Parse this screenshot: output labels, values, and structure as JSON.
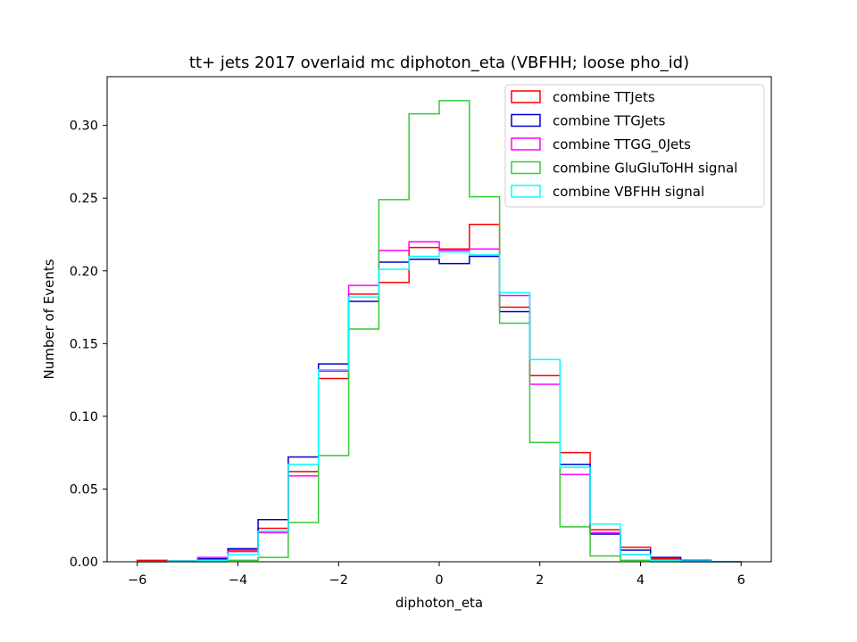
{
  "chart_data": {
    "type": "histogram",
    "title": "tt+ jets 2017 overlaid mc diphoton_eta (VBFHH; loose pho_id)",
    "xlabel": "diphoton_eta",
    "ylabel": "Number of Events",
    "xlim": [
      -6.6,
      6.6
    ],
    "ylim": [
      0,
      0.3335
    ],
    "x_ticks": [
      -6,
      -4,
      -2,
      0,
      2,
      4,
      6
    ],
    "x_tick_labels": [
      "−6",
      "−4",
      "−2",
      "0",
      "2",
      "4",
      "6"
    ],
    "y_ticks": [
      0.0,
      0.05,
      0.1,
      0.15,
      0.2,
      0.25,
      0.3
    ],
    "y_tick_labels": [
      "0.00",
      "0.05",
      "0.10",
      "0.15",
      "0.20",
      "0.25",
      "0.30"
    ],
    "grid": false,
    "legend_position": "top-right",
    "bin_edges": [
      -6.0,
      -5.4,
      -4.8,
      -4.2,
      -3.6,
      -3.0,
      -2.4,
      -1.8,
      -1.2,
      -0.6,
      0.0,
      0.6,
      1.2,
      1.8,
      2.4,
      3.0,
      3.6,
      4.2,
      4.8,
      5.4,
      6.0
    ],
    "series": [
      {
        "name": "combine TTJets",
        "color": "#ff0000",
        "values": [
          0.001,
          0.0005,
          0.002,
          0.008,
          0.023,
          0.062,
          0.126,
          0.184,
          0.192,
          0.216,
          0.215,
          0.232,
          0.175,
          0.128,
          0.075,
          0.022,
          0.01,
          0.002,
          0.0005,
          0.0
        ]
      },
      {
        "name": "combine TTGJets",
        "color": "#0000cc",
        "values": [
          0.0,
          0.0005,
          0.002,
          0.009,
          0.029,
          0.072,
          0.136,
          0.179,
          0.206,
          0.208,
          0.205,
          0.21,
          0.172,
          0.139,
          0.067,
          0.019,
          0.008,
          0.003,
          0.001,
          0.0
        ]
      },
      {
        "name": "combine TTGG_0Jets",
        "color": "#ff00ff",
        "values": [
          0.0,
          0.0005,
          0.003,
          0.007,
          0.02,
          0.059,
          0.131,
          0.19,
          0.214,
          0.22,
          0.214,
          0.215,
          0.183,
          0.122,
          0.06,
          0.02,
          0.005,
          0.001,
          0.0,
          0.0
        ]
      },
      {
        "name": "combine GluGluToHH signal",
        "color": "#33cc33",
        "values": [
          0.0,
          0.0,
          0.0,
          0.001,
          0.003,
          0.027,
          0.073,
          0.16,
          0.249,
          0.308,
          0.317,
          0.251,
          0.164,
          0.082,
          0.024,
          0.004,
          0.001,
          0.0,
          0.0,
          0.0
        ]
      },
      {
        "name": "combine VBFHH signal",
        "color": "#00ffff",
        "values": [
          0.0,
          0.0005,
          0.001,
          0.005,
          0.021,
          0.067,
          0.132,
          0.182,
          0.201,
          0.21,
          0.213,
          0.211,
          0.185,
          0.139,
          0.065,
          0.026,
          0.005,
          0.001,
          0.0005,
          0.0
        ]
      }
    ]
  }
}
